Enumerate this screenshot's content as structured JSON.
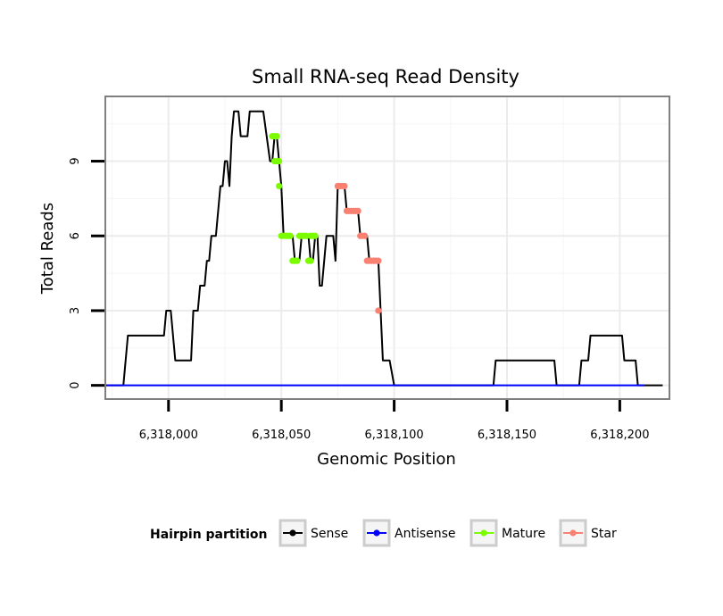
{
  "chart_data": {
    "type": "line",
    "title": "Small RNA-seq Read Density",
    "xlabel": "Genomic Position",
    "ylabel": "Total Reads",
    "xlim": [
      6317972,
      6318222
    ],
    "ylim": [
      -0.55,
      11.6
    ],
    "x_ticks": [
      6318000,
      6318050,
      6318100,
      6318150,
      6318200
    ],
    "x_tick_labels": [
      "6,318,000",
      "6,318,050",
      "6,318,100",
      "6,318,150",
      "6,318,200"
    ],
    "y_ticks": [
      0,
      3,
      6,
      9
    ],
    "y_tick_labels": [
      "0",
      "3",
      "6",
      "9"
    ],
    "grid": true,
    "legend": {
      "title": "Hairpin partition",
      "position": "bottom",
      "entries": [
        {
          "name": "Sense",
          "color": "#000000"
        },
        {
          "name": "Antisense",
          "color": "#0000ff"
        },
        {
          "name": "Mature",
          "color": "#7cfc00"
        },
        {
          "name": "Star",
          "color": "#fa8072"
        }
      ]
    },
    "series": [
      {
        "name": "Sense",
        "color": "#000000",
        "points": [
          [
            6317972,
            0
          ],
          [
            6317980,
            0
          ],
          [
            6317982,
            2
          ],
          [
            6317998,
            2
          ],
          [
            6317999,
            3
          ],
          [
            6318001,
            3
          ],
          [
            6318003,
            1
          ],
          [
            6318010,
            1
          ],
          [
            6318011,
            3
          ],
          [
            6318013,
            3
          ],
          [
            6318014,
            4
          ],
          [
            6318016,
            4
          ],
          [
            6318017,
            5
          ],
          [
            6318018,
            5
          ],
          [
            6318019,
            6
          ],
          [
            6318021,
            6
          ],
          [
            6318023,
            8
          ],
          [
            6318024,
            8
          ],
          [
            6318025,
            9
          ],
          [
            6318026,
            9
          ],
          [
            6318027,
            8
          ],
          [
            6318028,
            10
          ],
          [
            6318029,
            11
          ],
          [
            6318031,
            11
          ],
          [
            6318032,
            10
          ],
          [
            6318035,
            10
          ],
          [
            6318036,
            11
          ],
          [
            6318042,
            11
          ],
          [
            6318045,
            9
          ],
          [
            6318046,
            9
          ],
          [
            6318047,
            10
          ],
          [
            6318048,
            10
          ],
          [
            6318049,
            9
          ],
          [
            6318050,
            8
          ],
          [
            6318051,
            6
          ],
          [
            6318055,
            6
          ],
          [
            6318056,
            5
          ],
          [
            6318058,
            5
          ],
          [
            6318059,
            6
          ],
          [
            6318062,
            6
          ],
          [
            6318063,
            5
          ],
          [
            6318064,
            5
          ],
          [
            6318065,
            6
          ],
          [
            6318066,
            6
          ],
          [
            6318067,
            4
          ],
          [
            6318068,
            4
          ],
          [
            6318070,
            6
          ],
          [
            6318073,
            6
          ],
          [
            6318074,
            5
          ],
          [
            6318075,
            8
          ],
          [
            6318078,
            8
          ],
          [
            6318079,
            7
          ],
          [
            6318084,
            7
          ],
          [
            6318085,
            6
          ],
          [
            6318088,
            6
          ],
          [
            6318089,
            5
          ],
          [
            6318093,
            5
          ],
          [
            6318094,
            3
          ],
          [
            6318095,
            1
          ],
          [
            6318098,
            1
          ],
          [
            6318100,
            0
          ],
          [
            6318144,
            0
          ],
          [
            6318145,
            1
          ],
          [
            6318171,
            1
          ],
          [
            6318172,
            0
          ],
          [
            6318182,
            0
          ],
          [
            6318183,
            1
          ],
          [
            6318186,
            1
          ],
          [
            6318187,
            2
          ],
          [
            6318201,
            2
          ],
          [
            6318202,
            1
          ],
          [
            6318207,
            1
          ],
          [
            6318208,
            0
          ],
          [
            6318219,
            0
          ]
        ]
      },
      {
        "name": "Antisense",
        "color": "#0000ff",
        "points": [
          [
            6317972,
            0
          ],
          [
            6318211,
            0
          ]
        ]
      },
      {
        "name": "Mature",
        "color": "#7cfc00",
        "points": [
          [
            6318046,
            10
          ],
          [
            6318047,
            10
          ],
          [
            6318048,
            10
          ],
          [
            6318047,
            9
          ],
          [
            6318048,
            9
          ],
          [
            6318049,
            9
          ],
          [
            6318049,
            8
          ],
          [
            6318050,
            6
          ],
          [
            6318051,
            6
          ],
          [
            6318052,
            6
          ],
          [
            6318053,
            6
          ],
          [
            6318054,
            6
          ],
          [
            6318055,
            5
          ],
          [
            6318056,
            5
          ],
          [
            6318057,
            5
          ],
          [
            6318058,
            6
          ],
          [
            6318059,
            6
          ],
          [
            6318060,
            6
          ],
          [
            6318061,
            6
          ],
          [
            6318062,
            5
          ],
          [
            6318063,
            5
          ],
          [
            6318063,
            6
          ],
          [
            6318064,
            6
          ],
          [
            6318065,
            6
          ]
        ]
      },
      {
        "name": "Star",
        "color": "#fa8072",
        "points": [
          [
            6318075,
            8
          ],
          [
            6318076,
            8
          ],
          [
            6318077,
            8
          ],
          [
            6318078,
            8
          ],
          [
            6318079,
            7
          ],
          [
            6318080,
            7
          ],
          [
            6318081,
            7
          ],
          [
            6318082,
            7
          ],
          [
            6318083,
            7
          ],
          [
            6318084,
            7
          ],
          [
            6318085,
            6
          ],
          [
            6318086,
            6
          ],
          [
            6318087,
            6
          ],
          [
            6318088,
            5
          ],
          [
            6318089,
            5
          ],
          [
            6318090,
            5
          ],
          [
            6318091,
            5
          ],
          [
            6318092,
            5
          ],
          [
            6318093,
            5
          ],
          [
            6318093,
            3
          ]
        ]
      }
    ]
  }
}
